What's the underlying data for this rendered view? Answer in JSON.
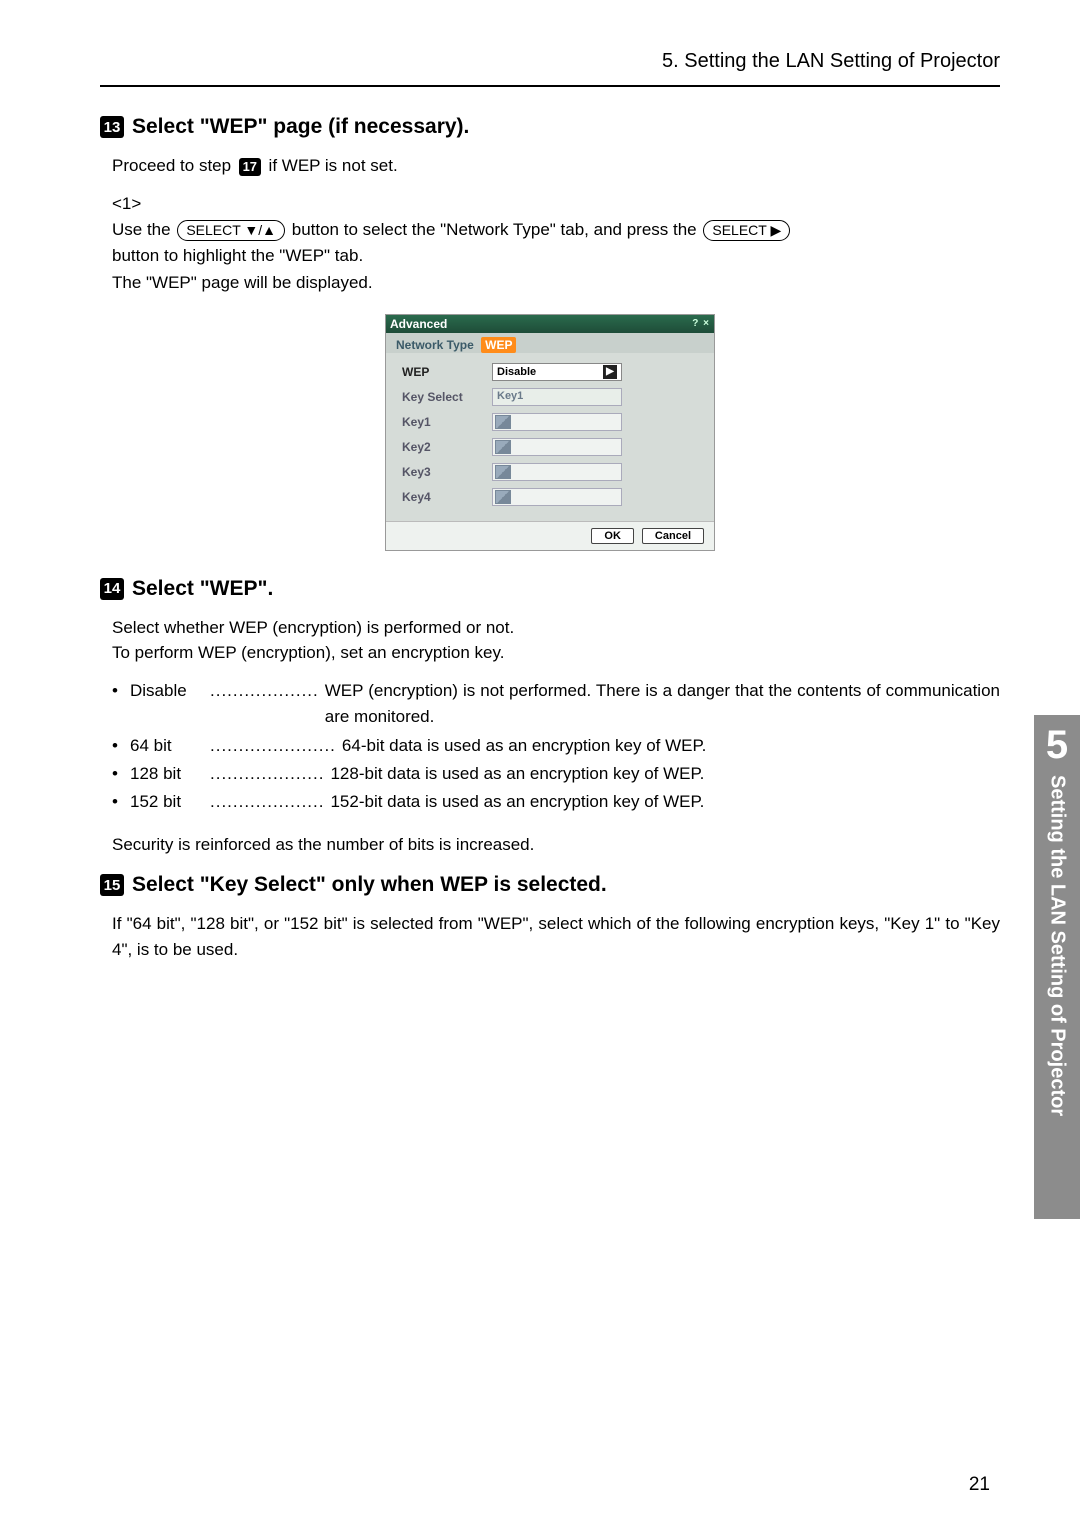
{
  "header": "5. Setting the LAN Setting of Projector",
  "step13": {
    "num": "13",
    "title": "Select \"WEP\" page (if necessary).",
    "line1_a": "Proceed to step ",
    "line1_ref": "17",
    "line1_b": " if WEP is not set.",
    "sub_num": "<1>",
    "sub_a": "Use the ",
    "select_updown": "SELECT ▼/▲",
    "sub_b": " button to select the \"Network Type\" tab, and press the ",
    "select_right": "SELECT ▶",
    "sub_c": "button to highlight the \"WEP\" tab.",
    "sub_d": "The \"WEP\" page will be displayed."
  },
  "dialog": {
    "title": "Advanced",
    "winbtns": "? ×",
    "tab1": "Network Type",
    "tab2": "WEP",
    "rows": {
      "wep_label": "WEP",
      "wep_value": "Disable",
      "keyselect_label": "Key Select",
      "keyselect_value": "Key1",
      "key1": "Key1",
      "key2": "Key2",
      "key3": "Key3",
      "key4": "Key4"
    },
    "ok": "OK",
    "cancel": "Cancel"
  },
  "step14": {
    "num": "14",
    "title": "Select \"WEP\".",
    "line1": "Select whether WEP (encryption) is performed or not.",
    "line2": "To perform WEP (encryption), set an encryption key.",
    "bullets": {
      "b1_label": "Disable",
      "b1_dots": "...................",
      "b1_desc": "WEP (encryption) is not performed.  There is a danger that the contents of communication are monitored.",
      "b2_label": "64 bit",
      "b2_dots": "......................",
      "b2_desc": "64-bit data is used as an encryption key of WEP.",
      "b3_label": "128 bit",
      "b3_dots": "....................",
      "b3_desc": "128-bit data is used as an encryption key of WEP.",
      "b4_label": "152 bit",
      "b4_dots": "....................",
      "b4_desc": "152-bit data is used as an encryption key of WEP."
    },
    "footnote": "Security is reinforced as the number of bits is increased."
  },
  "step15": {
    "num": "15",
    "title": "Select \"Key Select\" only when WEP is selected.",
    "body": "If \"64 bit\", \"128 bit\", or \"152 bit\" is selected from \"WEP\", select which of the following encryption keys, \"Key 1\" to \"Key 4\", is to be used."
  },
  "side": {
    "chapter_num": "5",
    "chapter_title": "Setting the LAN Setting of Projector"
  },
  "page_number": "21"
}
